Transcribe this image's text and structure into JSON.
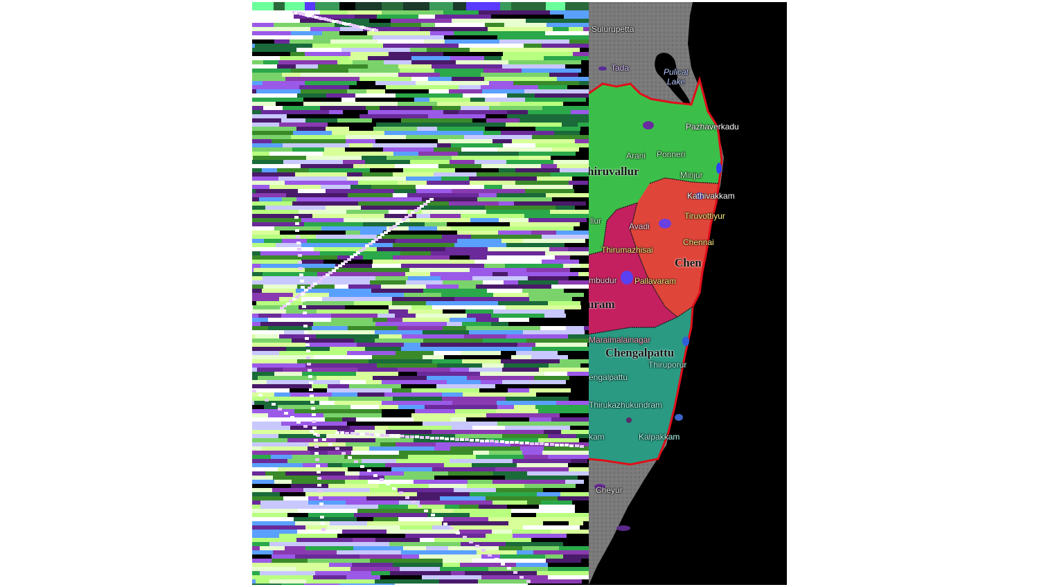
{
  "map": {
    "labels": {
      "sulurupetta": "Sulurupetta",
      "tada": "Tada",
      "pulicat_lake": "Pulicat Lake",
      "pazhaverkadu": "Pazhaverkadu",
      "arani": "Arani",
      "ponneri": "Ponneri",
      "thiruvallur_district": "hiruvallur",
      "minjur": "Minjur",
      "kathivakkam": "Kathivakkam",
      "thiruvottiyur": "Tiruvottiyur",
      "thiruvallur_town": "llur",
      "avadi": "Avadi",
      "chennai_city": "Chennai",
      "chennai_district": "Chen",
      "thirumazhisai": "Thirumazhisai",
      "pallavaram": "Pallavaram",
      "sriperumbudur": "mbudur",
      "kanchipuram": "uram",
      "maraimalainagar": "Maraimalainagar",
      "chengalpattu_district": "Chengalpattu",
      "chengalpattu_town": "engalpattu",
      "thiruporur": "Thiruporur",
      "thirukazhukundram": "Thirukazhukundram",
      "kalpakkam": "Kalpakkam",
      "madurantakam": "kam",
      "cheyur": "Cheyur"
    },
    "colors": {
      "sea": "#000000",
      "land": "#7a7a7a",
      "thiruvallur_region": "#3cbf4a",
      "chennai_region": "#e0453a",
      "kanchipuram_region": "#c42060",
      "chengalpattu_region": "#2a9a82",
      "boundary": "#e00f1a"
    },
    "icons": {
      "boundary_line": "red-outline-icon"
    }
  }
}
